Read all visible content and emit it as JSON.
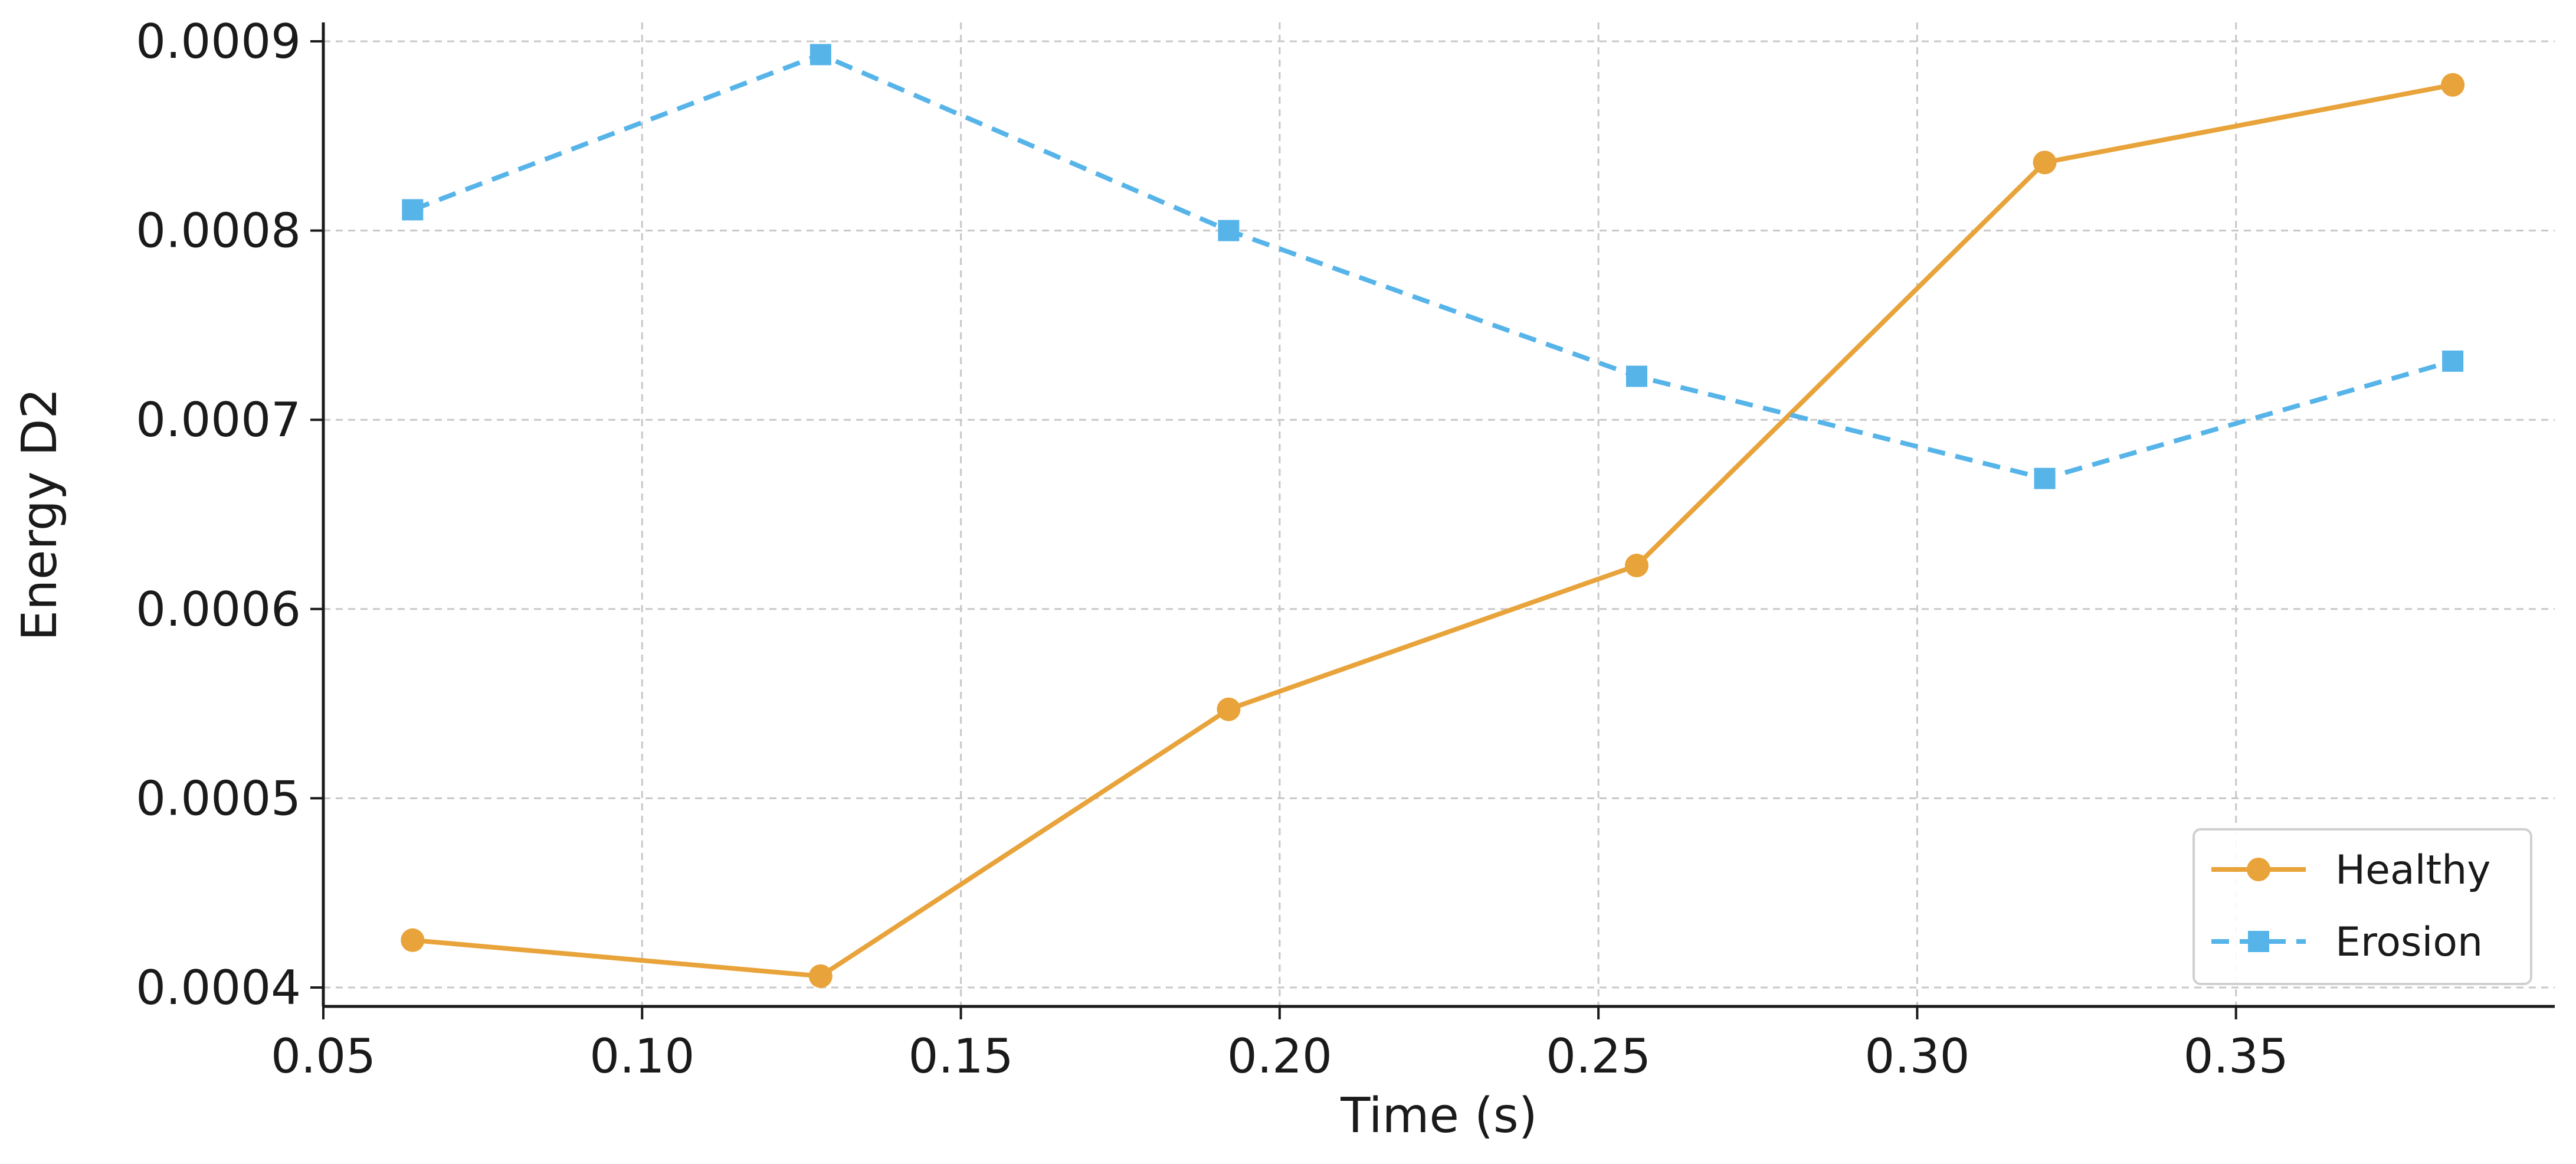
{
  "chart_data": {
    "type": "line",
    "title": "",
    "xlabel": "Time (s)",
    "ylabel": "Energy D2",
    "x": [
      0.064,
      0.128,
      0.192,
      0.256,
      0.32,
      0.384
    ],
    "xlim": [
      0.05,
      0.4
    ],
    "ylim": [
      0.00039,
      0.00091
    ],
    "xticks": [
      0.05,
      0.1,
      0.15,
      0.2,
      0.25,
      0.3,
      0.35
    ],
    "xtick_labels": [
      "0.05",
      "0.10",
      "0.15",
      "0.20",
      "0.25",
      "0.30",
      "0.35"
    ],
    "yticks": [
      0.0004,
      0.0005,
      0.0006,
      0.0007,
      0.0008,
      0.0009
    ],
    "ytick_labels": [
      "0.0004",
      "0.0005",
      "0.0006",
      "0.0007",
      "0.0008",
      "0.0009"
    ],
    "grid": true,
    "legend_position": "bottom-right",
    "series": [
      {
        "name": "Healthy",
        "values": [
          0.000425,
          0.000406,
          0.000547,
          0.000623,
          0.000836,
          0.000877
        ],
        "color": "#E8A33A",
        "line_style": "solid",
        "marker": "circle"
      },
      {
        "name": "Erosion",
        "values": [
          0.000811,
          0.000893,
          0.0008,
          0.000723,
          0.000669,
          0.000731
        ],
        "color": "#56B4E9",
        "line_style": "dashed",
        "marker": "square"
      }
    ]
  }
}
